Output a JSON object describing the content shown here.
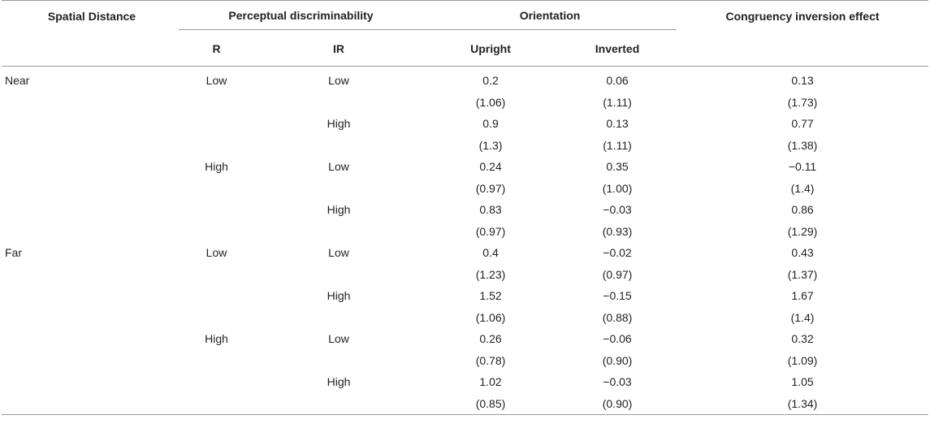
{
  "headers": {
    "spatial_distance": "Spatial Distance",
    "perceptual": "Perceptual discriminability",
    "r": "R",
    "ir": "IR",
    "orientation": "Orientation",
    "upright": "Upright",
    "inverted": "Inverted",
    "cie": "Congruency inversion effect"
  },
  "rows": [
    [
      "Near",
      "Low",
      "Low",
      "0.2",
      "0.06",
      "0.13"
    ],
    [
      "",
      "",
      "",
      "(1.06)",
      "(1.11)",
      "(1.73)"
    ],
    [
      "",
      "",
      "High",
      "0.9",
      "0.13",
      "0.77"
    ],
    [
      "",
      "",
      "",
      "(1.3)",
      "(1.11)",
      "(1.38)"
    ],
    [
      "",
      "High",
      "Low",
      "0.24",
      "0.35",
      "−0.11"
    ],
    [
      "",
      "",
      "",
      "(0.97)",
      "(1.00)",
      "(1.4)"
    ],
    [
      "",
      "",
      "High",
      "0.83",
      "−0.03",
      "0.86"
    ],
    [
      "",
      "",
      "",
      "(0.97)",
      "(0.93)",
      "(1.29)"
    ],
    [
      "Far",
      "Low",
      "Low",
      "0.4",
      "−0.02",
      "0.43"
    ],
    [
      "",
      "",
      "",
      "(1.23)",
      "(0.97)",
      "(1.37)"
    ],
    [
      "",
      "",
      "High",
      "1.52",
      "−0.15",
      "1.67"
    ],
    [
      "",
      "",
      "",
      "(1.06)",
      "(0.88)",
      "(1.4)"
    ],
    [
      "",
      "High",
      "Low",
      "0.26",
      "−0.06",
      "0.32"
    ],
    [
      "",
      "",
      "",
      "(0.78)",
      "(0.90)",
      "(1.09)"
    ],
    [
      "",
      "",
      "High",
      "1.02",
      "−0.03",
      "1.05"
    ],
    [
      "",
      "",
      "",
      "(0.85)",
      "(0.90)",
      "(1.34)"
    ]
  ]
}
